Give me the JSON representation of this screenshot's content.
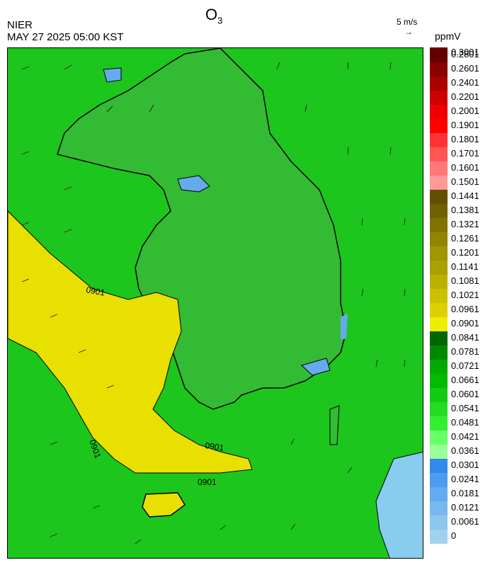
{
  "header": {
    "title": "O",
    "title_sub": "3",
    "org": "NIER",
    "timestamp": "MAY 27 2025 05:00 KST",
    "wind_reference": "5 m/s",
    "wind_arrow": "→",
    "unit": "ppmV"
  },
  "map": {
    "contour_labels": [
      "0901",
      "0901",
      "0901",
      "0901"
    ],
    "colors": {
      "ocean_green": "#22cc22",
      "land_green": "#33bb33",
      "yellow_band": "#e8e000",
      "blue_low": "#66aaee"
    }
  },
  "legend": {
    "colors": [
      "#a0d2ee",
      "#8ac6ee",
      "#78b8ee",
      "#64aaf0",
      "#4c9cf0",
      "#3388ee",
      "#99ff99",
      "#66ff66",
      "#33ee33",
      "#22dd22",
      "#11cc11",
      "#00bb00",
      "#00aa00",
      "#008800",
      "#006600",
      "#eeee00",
      "#ddd000",
      "#ccc000",
      "#bbb000",
      "#aaa000",
      "#a09600",
      "#908400",
      "#807200",
      "#706000",
      "#605000",
      "#ff9999",
      "#ff7777",
      "#ff5555",
      "#ff3333",
      "#ff0000",
      "#ee0000",
      "#cc0000",
      "#aa0000",
      "#880000",
      "#660000"
    ],
    "labels": [
      "0",
      "0.0061",
      "0.0121",
      "0.0181",
      "0.0241",
      "0.0301",
      "0.0361",
      "0.0421",
      "0.0481",
      "0.0541",
      "0.0601",
      "0.0661",
      "0.0721",
      "0.0781",
      "0.0841",
      "0.0901",
      "0.0961",
      "0.1021",
      "0.1081",
      "0.1141",
      "0.1201",
      "0.1261",
      "0.1321",
      "0.1381",
      "0.1441",
      "0.1501",
      "0.1601",
      "0.1701",
      "0.1801",
      "0.1901",
      "0.2001",
      "0.2201",
      "0.2401",
      "0.2601",
      "0.2801",
      "0.3001"
    ]
  }
}
